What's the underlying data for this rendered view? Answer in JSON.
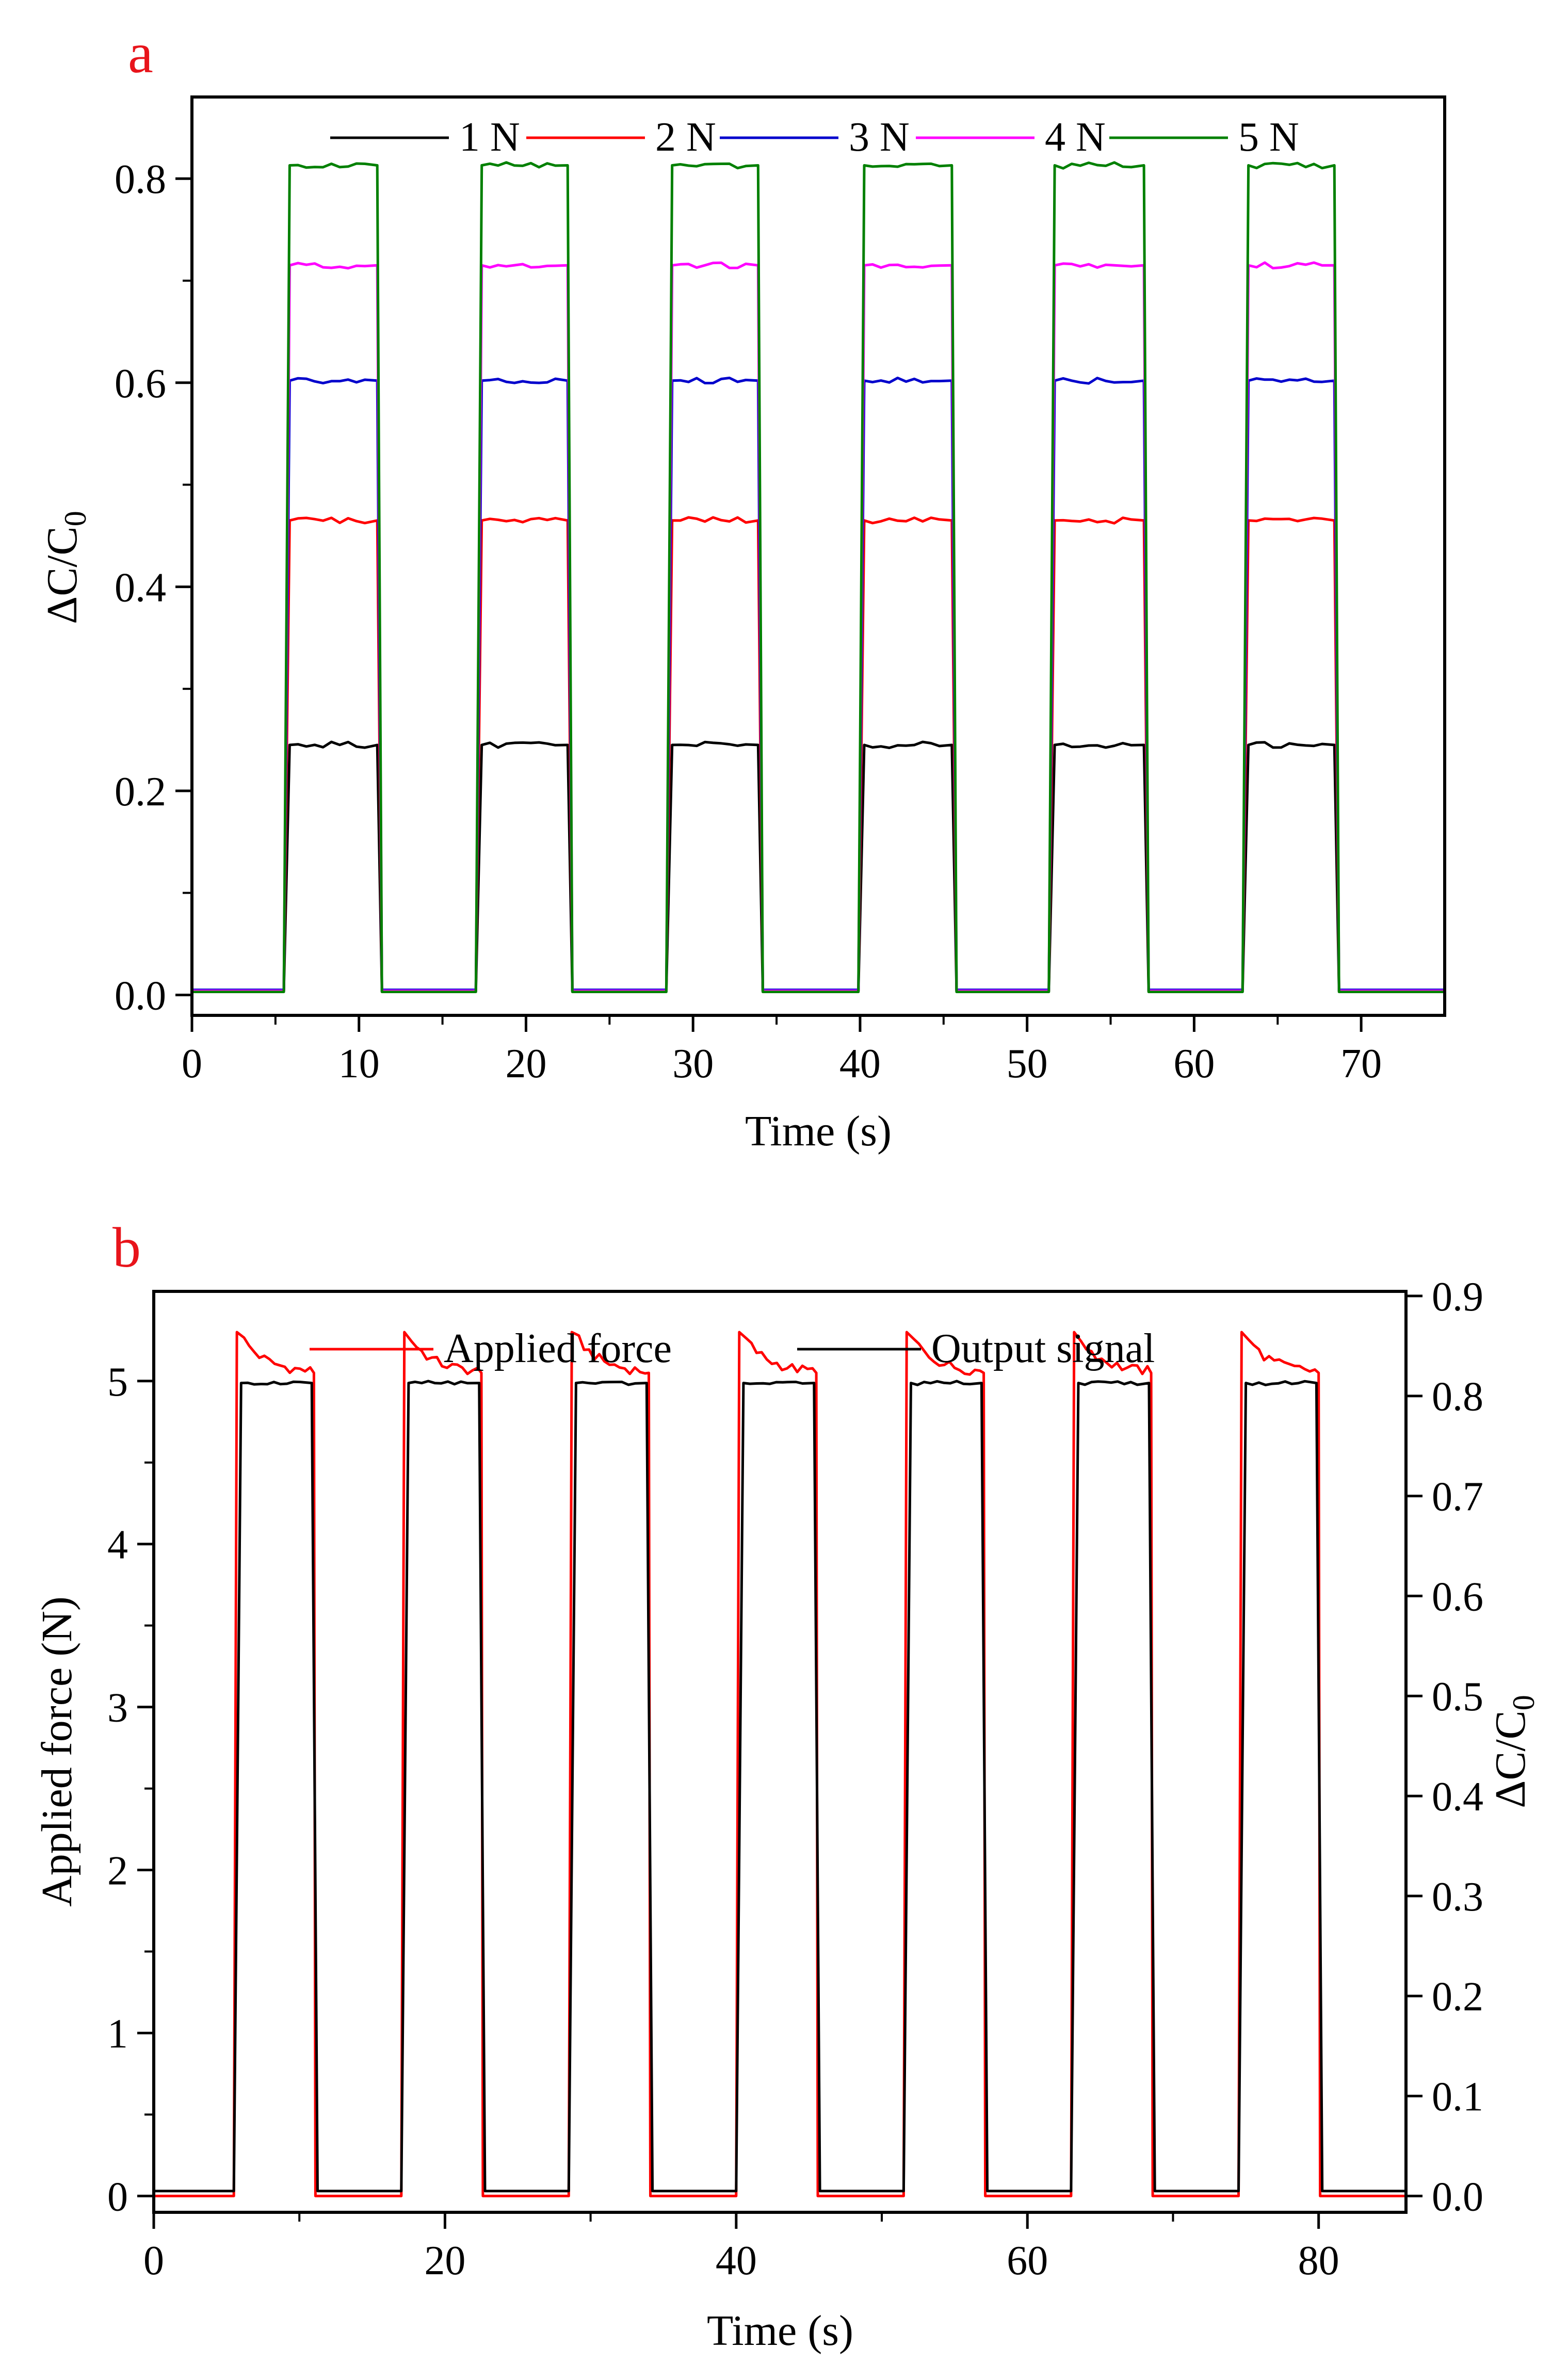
{
  "chart_data": [
    {
      "panel": "a",
      "type": "line",
      "xlabel": "Time (s)",
      "ylabel": "ΔC/C",
      "ylabel_sub": "0",
      "xlim": [
        0,
        75
      ],
      "ylim": [
        -0.02,
        0.88
      ],
      "xticks": [
        0,
        10,
        20,
        30,
        40,
        50,
        60,
        70
      ],
      "yticks": [
        0.0,
        0.2,
        0.4,
        0.6,
        0.8
      ],
      "ytick_labels": [
        "0.0",
        "0.2",
        "0.4",
        "0.6",
        "0.8"
      ],
      "legend_position": "top",
      "pulses": [
        [
          5.5,
          11.2
        ],
        [
          17.0,
          22.6
        ],
        [
          28.4,
          34.0
        ],
        [
          39.9,
          45.6
        ],
        [
          51.3,
          57.1
        ],
        [
          62.9,
          68.5
        ]
      ],
      "series": [
        {
          "name": "1 N",
          "color": "#000000",
          "plateau": 0.245,
          "baseline": 0.004
        },
        {
          "name": "2 N",
          "color": "#ff0000",
          "plateau": 0.465,
          "baseline": 0.004
        },
        {
          "name": "3 N",
          "color": "#0000cc",
          "plateau": 0.602,
          "baseline": 0.005
        },
        {
          "name": "4 N",
          "color": "#ff00ff",
          "plateau": 0.715,
          "baseline": 0.004
        },
        {
          "name": "5 N",
          "color": "#008000",
          "plateau": 0.813,
          "baseline": 0.003
        }
      ]
    },
    {
      "panel": "b",
      "type": "line",
      "xlabel": "Time (s)",
      "ylabel_left": "Applied force (N)",
      "ylabel_right": "ΔC/C",
      "ylabel_right_sub": "0",
      "xlim": [
        0,
        86
      ],
      "ylim_left": [
        -0.1,
        5.55
      ],
      "ylim_right": [
        -0.0163,
        0.9046
      ],
      "xticks": [
        0,
        20,
        40,
        60,
        80
      ],
      "yticks_left": [
        0,
        1,
        2,
        3,
        4,
        5
      ],
      "yticks_right": [
        0.0,
        0.1,
        0.2,
        0.3,
        0.4,
        0.5,
        0.6,
        0.7,
        0.8,
        0.9
      ],
      "ytick_labels_right": [
        "0.0",
        "0.1",
        "0.2",
        "0.3",
        "0.4",
        "0.5",
        "0.6",
        "0.7",
        "0.8",
        "0.9"
      ],
      "legend_position": "top",
      "pulses": [
        [
          5.5,
          11.0
        ],
        [
          17.0,
          22.5
        ],
        [
          28.5,
          34.0
        ],
        [
          40.0,
          45.5
        ],
        [
          51.5,
          57.0
        ],
        [
          63.0,
          68.5
        ],
        [
          74.5,
          80.0
        ]
      ],
      "series": [
        {
          "name": "Applied force",
          "color": "#ff0000",
          "axis": "left",
          "peak": 5.3,
          "plateau": 5.05,
          "baseline": 0.0
        },
        {
          "name": "Output signal",
          "color": "#000000",
          "axis": "right",
          "plateau": 0.813,
          "baseline": 0.005
        }
      ]
    }
  ]
}
